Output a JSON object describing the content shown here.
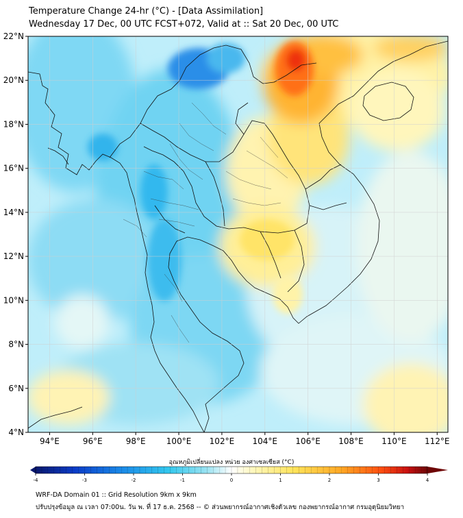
{
  "header": {
    "title": "Temperature Change 24-hr (°C) - [Data Assimilation]",
    "subtitle": "Wednesday 17 Dec, 00 UTC FCST+072, Valid at :: Sat 20 Dec, 00 UTC"
  },
  "map": {
    "lat_labels": [
      "22°N",
      "20°N",
      "18°N",
      "16°N",
      "14°N",
      "12°N",
      "10°N",
      "8°N",
      "6°N",
      "4°N"
    ],
    "lon_labels": [
      "94°E",
      "96°E",
      "98°E",
      "100°E",
      "102°E",
      "104°E",
      "106°E",
      "108°E",
      "110°E",
      "112°E"
    ],
    "lat_range": [
      4,
      22
    ],
    "lon_range": [
      93,
      112.5
    ]
  },
  "colorbar": {
    "label": "อุณหภูมิเปลี่ยนแปลง หน่วย องศาเซลเซียส (°C)",
    "ticks": [
      "-4",
      "-3",
      "-2",
      "-1",
      "0",
      "1",
      "2",
      "3",
      "4"
    ],
    "range": [
      -4,
      4
    ],
    "colors": [
      "#08186e",
      "#0a3cc8",
      "#1a8ae8",
      "#33c8ee",
      "#9ee4f2",
      "#ffffff",
      "#fff7b8",
      "#ffe45a",
      "#ffa824",
      "#ff5010",
      "#c81010",
      "#6e0606"
    ]
  },
  "footer": {
    "line1": "WRF-DA Domain 01 :: Grid Resolution 9km x 9km",
    "line2": "ปรับปรุงข้อมูล ณ เวลา 07:00น. วัน พ. ที่ 17 ธ.ค. 2568 -- © ส่วนพยากรณ์อากาศเชิงตัวเลข กองพยากรณ์อากาศ กรมอุตุนิยมวิทยา"
  }
}
